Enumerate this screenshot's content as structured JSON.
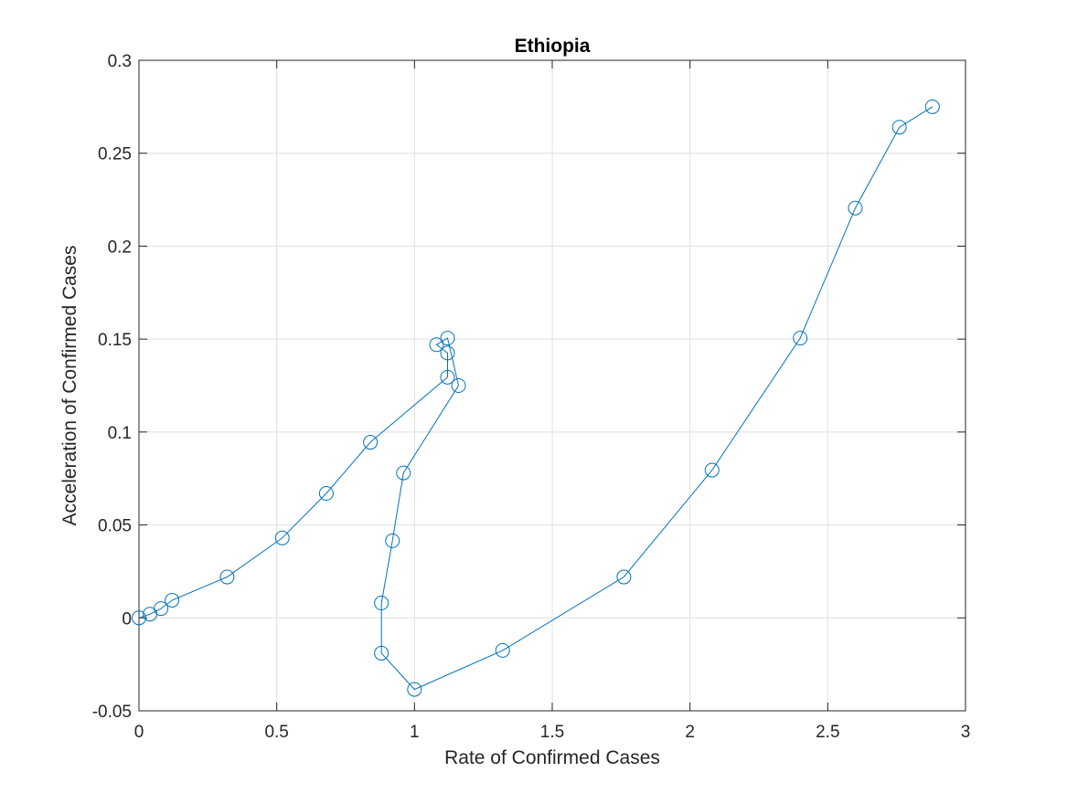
{
  "chart_data": {
    "type": "line",
    "title": "Ethiopia",
    "xlabel": "Rate of Confirmed Cases",
    "ylabel": "Acceleration of Confirmed Cases",
    "xlim": [
      0,
      3
    ],
    "ylim": [
      -0.05,
      0.3
    ],
    "xticks": [
      0,
      0.5,
      1,
      1.5,
      2,
      2.5,
      3
    ],
    "xtick_labels": [
      "0",
      "0.5",
      "1",
      "1.5",
      "2",
      "2.5",
      "3"
    ],
    "yticks": [
      -0.05,
      0,
      0.05,
      0.1,
      0.15,
      0.2,
      0.25,
      0.3
    ],
    "ytick_labels": [
      "-0.05",
      "0",
      "0.05",
      "0.1",
      "0.15",
      "0.2",
      "0.25",
      "0.3"
    ],
    "grid": true,
    "marker": "circle",
    "series": [
      {
        "color": "#0072BD",
        "x": [
          0,
          0.04,
          0.08,
          0.12,
          0.32,
          0.52,
          0.68,
          0.84,
          1.12,
          1.12,
          1.08,
          1.12,
          1.16,
          0.96,
          0.92,
          0.88,
          0.88,
          1.0,
          1.32,
          1.76,
          2.08,
          2.4,
          2.6,
          2.76,
          2.88
        ],
        "y": [
          0,
          0.002,
          0.005,
          0.0095,
          0.022,
          0.043,
          0.067,
          0.0945,
          0.1295,
          0.1425,
          0.147,
          0.1505,
          0.125,
          0.078,
          0.0415,
          0.008,
          -0.019,
          -0.0385,
          -0.0175,
          0.022,
          0.0795,
          0.1505,
          0.2205,
          0.264,
          0.275
        ]
      }
    ]
  }
}
